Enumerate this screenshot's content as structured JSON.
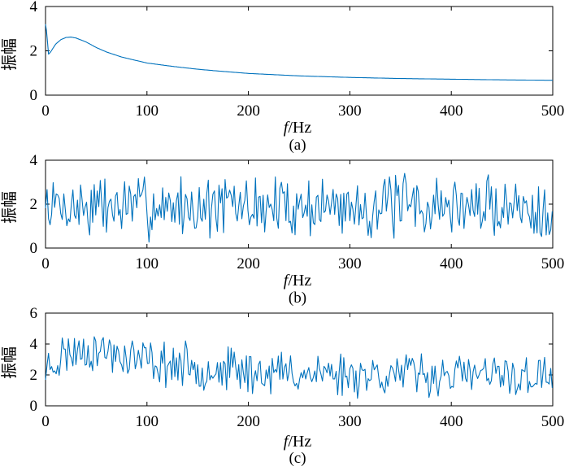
{
  "chart_data": [
    {
      "type": "line",
      "panel": "a",
      "caption": "(a)",
      "xlabel_italic": "f",
      "xlabel_unit": "/Hz",
      "ylabel": "振幅",
      "xlim": [
        0,
        500
      ],
      "ylim": [
        0,
        4
      ],
      "xticks": [
        0,
        100,
        200,
        300,
        400,
        500
      ],
      "yticks": [
        0,
        2,
        4
      ],
      "color": "#0072BD",
      "series_profile": "smooth",
      "key_points": [
        [
          0,
          3.2
        ],
        [
          1,
          2.9
        ],
        [
          3,
          1.85
        ],
        [
          5,
          1.95
        ],
        [
          10,
          2.3
        ],
        [
          15,
          2.5
        ],
        [
          20,
          2.6
        ],
        [
          25,
          2.62
        ],
        [
          30,
          2.58
        ],
        [
          40,
          2.4
        ],
        [
          50,
          2.15
        ],
        [
          60,
          1.95
        ],
        [
          75,
          1.72
        ],
        [
          100,
          1.45
        ],
        [
          125,
          1.3
        ],
        [
          150,
          1.17
        ],
        [
          175,
          1.07
        ],
        [
          200,
          0.98
        ],
        [
          250,
          0.87
        ],
        [
          300,
          0.8
        ],
        [
          350,
          0.75
        ],
        [
          400,
          0.72
        ],
        [
          450,
          0.69
        ],
        [
          500,
          0.67
        ]
      ]
    },
    {
      "type": "line",
      "panel": "b",
      "caption": "(b)",
      "xlabel_italic": "f",
      "xlabel_unit": "/Hz",
      "ylabel": "振幅",
      "xlim": [
        0,
        500
      ],
      "ylim": [
        0,
        4
      ],
      "xticks": [
        0,
        100,
        200,
        300,
        400,
        500
      ],
      "yticks": [
        0,
        2,
        4
      ],
      "color": "#0072BD",
      "series_profile": "noise",
      "noise_seed": 7,
      "key_points": [
        [
          0,
          1.9
        ],
        [
          500,
          1.9
        ]
      ],
      "noise_mean": 1.9,
      "noise_min": 0.0,
      "noise_max": 3.4
    },
    {
      "type": "line",
      "panel": "c",
      "caption": "(c)",
      "xlabel_italic": "f",
      "xlabel_unit": "/Hz",
      "ylabel": "振幅",
      "xlim": [
        0,
        500
      ],
      "ylim": [
        0,
        6
      ],
      "xticks": [
        0,
        100,
        200,
        300,
        400,
        500
      ],
      "yticks": [
        0,
        2,
        4,
        6
      ],
      "color": "#0072BD",
      "series_profile": "noise",
      "noise_seed": 23,
      "key_points": [
        [
          0,
          2.4
        ],
        [
          20,
          3.4
        ],
        [
          40,
          3.7
        ],
        [
          60,
          3.5
        ],
        [
          100,
          2.9
        ],
        [
          150,
          2.5
        ],
        [
          200,
          2.2
        ],
        [
          300,
          2.1
        ],
        [
          400,
          2.0
        ],
        [
          500,
          1.8
        ]
      ],
      "noise_min": 0.3,
      "noise_max": 4.7
    }
  ]
}
